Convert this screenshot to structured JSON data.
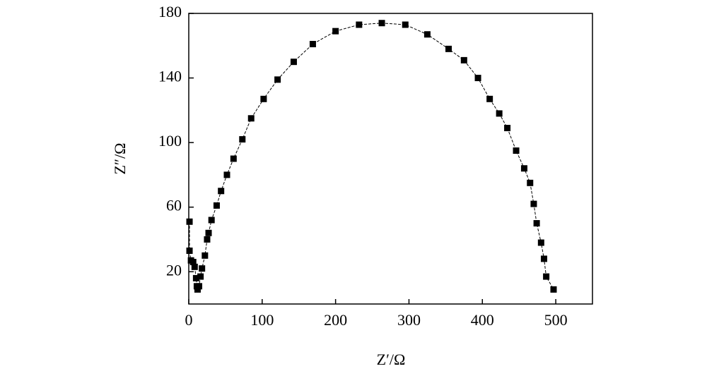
{
  "chart_data": {
    "type": "scatter",
    "x_label": "Z′/Ω",
    "y_label": "Z″/Ω",
    "xlim": [
      0,
      550
    ],
    "ylim": [
      0,
      180
    ],
    "xticks": [
      0,
      100,
      200,
      300,
      400,
      500
    ],
    "yticks": [
      20,
      60,
      100,
      140,
      180
    ],
    "series": [
      {
        "color": "#000000",
        "x": [
          1,
          1,
          3,
          6,
          8,
          10,
          11,
          12,
          14,
          16,
          18,
          22,
          25,
          27,
          31,
          38,
          44,
          52,
          61,
          73,
          85,
          102,
          121,
          143,
          169,
          200,
          232,
          263,
          295,
          325,
          354,
          375,
          394,
          410,
          423,
          434,
          446,
          457,
          465,
          470,
          474,
          480,
          484,
          487,
          497
        ],
        "values": [
          51,
          33,
          27,
          26,
          23,
          16,
          11,
          9,
          11,
          17,
          22,
          30,
          40,
          44,
          52,
          61,
          70,
          80,
          90,
          102,
          115,
          127,
          139,
          150,
          161,
          169,
          173,
          174,
          173,
          167,
          158,
          151,
          140,
          127,
          118,
          109,
          95,
          84,
          75,
          62,
          50,
          38,
          28,
          17,
          9
        ]
      }
    ]
  }
}
